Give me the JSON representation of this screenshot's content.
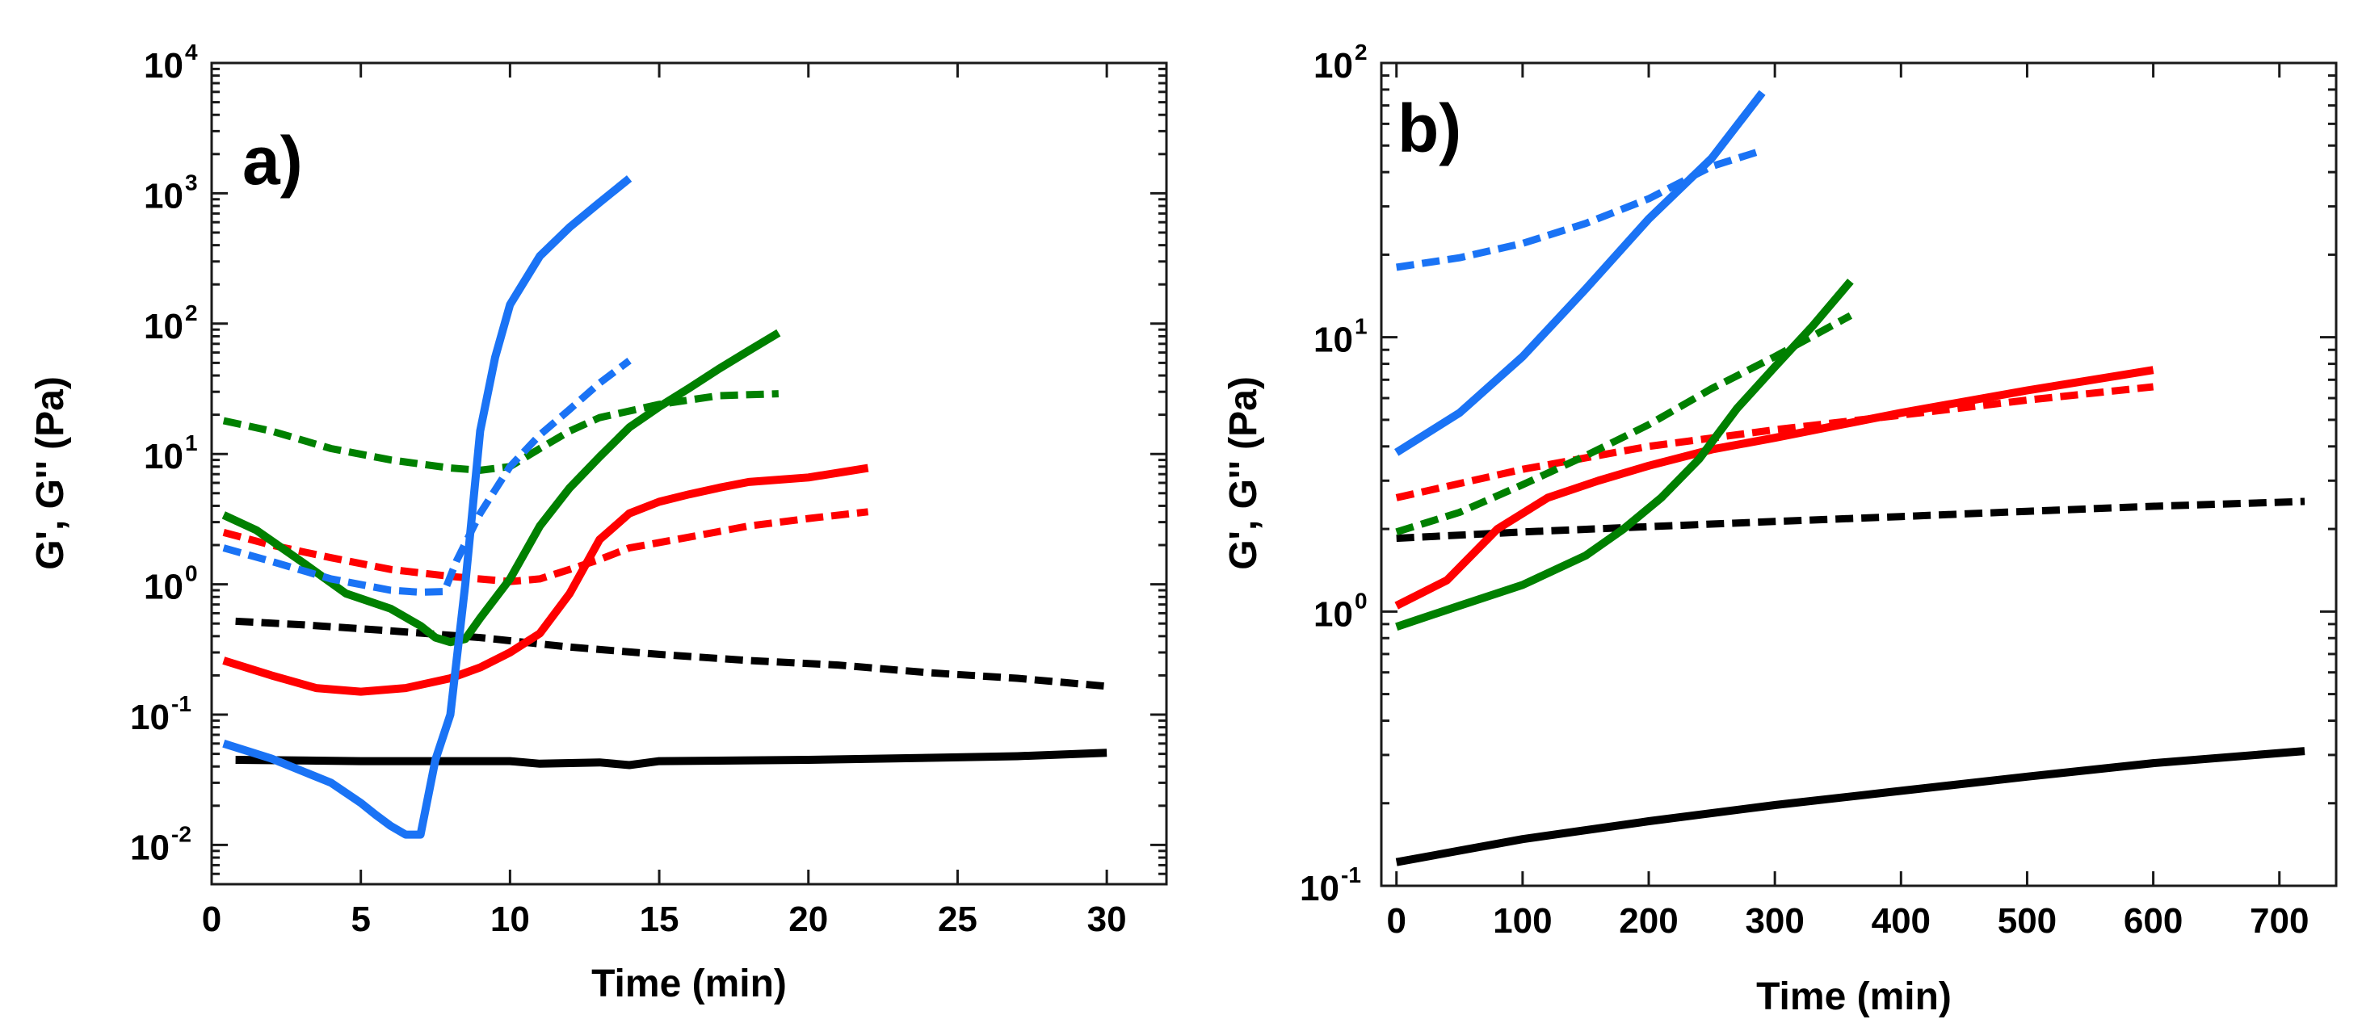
{
  "chart_data": [
    {
      "type": "line",
      "panel_label": "a)",
      "xlabel": "Time (min)",
      "ylabel": "G', G'' (Pa)",
      "xlim": [
        0,
        32
      ],
      "ylim": [
        0.005,
        10000
      ],
      "yscale": "log",
      "xticks": [
        0,
        5,
        10,
        15,
        20,
        25,
        30
      ],
      "yticks": [
        {
          "value": 0.01,
          "base": "10",
          "exp": "-2"
        },
        {
          "value": 0.1,
          "base": "10",
          "exp": "-1"
        },
        {
          "value": 1,
          "base": "10",
          "exp": "0"
        },
        {
          "value": 10,
          "base": "10",
          "exp": "1"
        },
        {
          "value": 100,
          "base": "10",
          "exp": "2"
        },
        {
          "value": 1000,
          "base": "10",
          "exp": "3"
        },
        {
          "value": 10000,
          "base": "10",
          "exp": "4"
        }
      ],
      "series": [
        {
          "name": "black G'",
          "color": "#000000",
          "dash": "solid",
          "points": [
            [
              0.8,
              0.045
            ],
            [
              5,
              0.044
            ],
            [
              10,
              0.044
            ],
            [
              11,
              0.042
            ],
            [
              13,
              0.043
            ],
            [
              14,
              0.041
            ],
            [
              15,
              0.044
            ],
            [
              20,
              0.045
            ],
            [
              25,
              0.047
            ],
            [
              27,
              0.048
            ],
            [
              30,
              0.051
            ]
          ]
        },
        {
          "name": "black G''",
          "color": "#000000",
          "dash": "dashed",
          "points": [
            [
              0.8,
              0.52
            ],
            [
              3,
              0.49
            ],
            [
              6,
              0.44
            ],
            [
              9,
              0.39
            ],
            [
              12,
              0.33
            ],
            [
              15,
              0.29
            ],
            [
              18,
              0.26
            ],
            [
              21,
              0.24
            ],
            [
              24,
              0.21
            ],
            [
              27,
              0.19
            ],
            [
              30,
              0.165
            ]
          ]
        },
        {
          "name": "red G'",
          "color": "#ff0000",
          "dash": "solid",
          "points": [
            [
              0.4,
              0.26
            ],
            [
              2,
              0.2
            ],
            [
              3.5,
              0.16
            ],
            [
              5,
              0.15
            ],
            [
              6.5,
              0.16
            ],
            [
              8,
              0.19
            ],
            [
              9,
              0.23
            ],
            [
              10,
              0.3
            ],
            [
              11,
              0.42
            ],
            [
              12,
              0.85
            ],
            [
              13,
              2.2
            ],
            [
              14,
              3.5
            ],
            [
              15,
              4.3
            ],
            [
              16,
              4.9
            ],
            [
              17,
              5.5
            ],
            [
              18,
              6.1
            ],
            [
              20,
              6.6
            ],
            [
              22,
              7.8
            ]
          ]
        },
        {
          "name": "red G''",
          "color": "#ff0000",
          "dash": "dashed",
          "points": [
            [
              0.4,
              2.5
            ],
            [
              2,
              2.0
            ],
            [
              4,
              1.6
            ],
            [
              6,
              1.3
            ],
            [
              8,
              1.15
            ],
            [
              10,
              1.05
            ],
            [
              11,
              1.1
            ],
            [
              12,
              1.3
            ],
            [
              13,
              1.55
            ],
            [
              14,
              1.9
            ],
            [
              16,
              2.3
            ],
            [
              18,
              2.8
            ],
            [
              20,
              3.2
            ],
            [
              22,
              3.6
            ]
          ]
        },
        {
          "name": "green G'",
          "color": "#008000",
          "dash": "solid",
          "points": [
            [
              0.4,
              3.4
            ],
            [
              1.5,
              2.6
            ],
            [
              3,
              1.5
            ],
            [
              4.5,
              0.85
            ],
            [
              6,
              0.65
            ],
            [
              7,
              0.48
            ],
            [
              7.5,
              0.39
            ],
            [
              8,
              0.36
            ],
            [
              8.5,
              0.38
            ],
            [
              9,
              0.55
            ],
            [
              10,
              1.1
            ],
            [
              11,
              2.8
            ],
            [
              12,
              5.5
            ],
            [
              13,
              9.5
            ],
            [
              14,
              16
            ],
            [
              15,
              23
            ],
            [
              16,
              32
            ],
            [
              17,
              45
            ],
            [
              18,
              62
            ],
            [
              19,
              85
            ]
          ]
        },
        {
          "name": "green G''",
          "color": "#008000",
          "dash": "dashed",
          "points": [
            [
              0.4,
              18
            ],
            [
              2,
              15
            ],
            [
              4,
              11
            ],
            [
              6,
              9
            ],
            [
              8,
              7.8
            ],
            [
              9,
              7.5
            ],
            [
              10,
              8
            ],
            [
              11,
              11
            ],
            [
              12,
              15
            ],
            [
              13,
              19
            ],
            [
              15,
              24
            ],
            [
              17,
              28
            ],
            [
              19,
              29
            ]
          ]
        },
        {
          "name": "blue G'",
          "color": "#1a73f5",
          "dash": "solid",
          "points": [
            [
              0.4,
              0.06
            ],
            [
              2,
              0.046
            ],
            [
              4,
              0.03
            ],
            [
              5,
              0.021
            ],
            [
              5.5,
              0.017
            ],
            [
              6,
              0.014
            ],
            [
              6.5,
              0.012
            ],
            [
              7,
              0.012
            ],
            [
              7.5,
              0.045
            ],
            [
              8,
              0.1
            ],
            [
              8.5,
              1.0
            ],
            [
              9,
              15
            ],
            [
              9.5,
              55
            ],
            [
              10,
              140
            ],
            [
              11,
              330
            ],
            [
              12,
              550
            ],
            [
              13,
              850
            ],
            [
              14,
              1300
            ]
          ]
        },
        {
          "name": "blue G''",
          "color": "#1a73f5",
          "dash": "dashed",
          "points": [
            [
              0.4,
              1.9
            ],
            [
              2,
              1.5
            ],
            [
              4,
              1.1
            ],
            [
              6,
              0.9
            ],
            [
              7,
              0.87
            ],
            [
              7.8,
              0.88
            ],
            [
              8.2,
              1.5
            ],
            [
              9,
              3.5
            ],
            [
              10,
              8
            ],
            [
              11,
              14
            ],
            [
              12,
              22
            ],
            [
              13,
              35
            ],
            [
              14,
              52
            ]
          ]
        }
      ]
    },
    {
      "type": "line",
      "panel_label": "b)",
      "xlabel": "Time (min)",
      "ylabel": "G', G'' (Pa)",
      "xlim": [
        -12,
        745
      ],
      "ylim": [
        0.1,
        100
      ],
      "yscale": "log",
      "xticks": [
        0,
        100,
        200,
        300,
        400,
        500,
        600,
        700
      ],
      "yticks": [
        {
          "value": 0.1,
          "base": "10",
          "exp": "-1"
        },
        {
          "value": 1,
          "base": "10",
          "exp": "0"
        },
        {
          "value": 10,
          "base": "10",
          "exp": "1"
        },
        {
          "value": 100,
          "base": "10",
          "exp": "2"
        }
      ],
      "series": [
        {
          "name": "black G'",
          "color": "#000000",
          "dash": "solid",
          "points": [
            [
              0,
              0.122
            ],
            [
              100,
              0.148
            ],
            [
              200,
              0.172
            ],
            [
              300,
              0.197
            ],
            [
              400,
              0.222
            ],
            [
              500,
              0.25
            ],
            [
              600,
              0.28
            ],
            [
              720,
              0.31
            ]
          ]
        },
        {
          "name": "black G''",
          "color": "#000000",
          "dash": "dashed",
          "points": [
            [
              0,
              1.85
            ],
            [
              100,
              1.95
            ],
            [
              200,
              2.04
            ],
            [
              300,
              2.13
            ],
            [
              400,
              2.22
            ],
            [
              500,
              2.32
            ],
            [
              600,
              2.42
            ],
            [
              720,
              2.52
            ]
          ]
        },
        {
          "name": "red G'",
          "color": "#ff0000",
          "dash": "solid",
          "points": [
            [
              0,
              1.05
            ],
            [
              40,
              1.3
            ],
            [
              80,
              2.0
            ],
            [
              120,
              2.6
            ],
            [
              160,
              3.0
            ],
            [
              200,
              3.4
            ],
            [
              250,
              3.9
            ],
            [
              300,
              4.3
            ],
            [
              400,
              5.3
            ],
            [
              500,
              6.4
            ],
            [
              600,
              7.6
            ]
          ]
        },
        {
          "name": "red G''",
          "color": "#ff0000",
          "dash": "dashed",
          "points": [
            [
              0,
              2.6
            ],
            [
              100,
              3.3
            ],
            [
              200,
              4.0
            ],
            [
              300,
              4.6
            ],
            [
              400,
              5.2
            ],
            [
              500,
              5.9
            ],
            [
              600,
              6.6
            ]
          ]
        },
        {
          "name": "green G'",
          "color": "#008000",
          "dash": "solid",
          "points": [
            [
              0,
              0.88
            ],
            [
              50,
              1.05
            ],
            [
              100,
              1.25
            ],
            [
              150,
              1.6
            ],
            [
              180,
              2.0
            ],
            [
              210,
              2.6
            ],
            [
              240,
              3.6
            ],
            [
              270,
              5.5
            ],
            [
              300,
              7.8
            ],
            [
              330,
              11
            ],
            [
              360,
              16
            ]
          ]
        },
        {
          "name": "green G''",
          "color": "#008000",
          "dash": "dashed",
          "points": [
            [
              0,
              1.95
            ],
            [
              50,
              2.3
            ],
            [
              100,
              2.9
            ],
            [
              150,
              3.7
            ],
            [
              200,
              4.8
            ],
            [
              250,
              6.5
            ],
            [
              300,
              8.5
            ],
            [
              360,
              12
            ]
          ]
        },
        {
          "name": "blue G'",
          "color": "#1a73f5",
          "dash": "solid",
          "points": [
            [
              0,
              3.8
            ],
            [
              50,
              5.3
            ],
            [
              100,
              8.5
            ],
            [
              150,
              15
            ],
            [
              200,
              27
            ],
            [
              250,
              45
            ],
            [
              290,
              78
            ]
          ]
        },
        {
          "name": "blue G''",
          "color": "#1a73f5",
          "dash": "dashed",
          "points": [
            [
              0,
              18
            ],
            [
              50,
              19.5
            ],
            [
              100,
              22
            ],
            [
              150,
              26
            ],
            [
              200,
              32
            ],
            [
              250,
              42
            ],
            [
              290,
              48
            ]
          ]
        }
      ]
    }
  ]
}
